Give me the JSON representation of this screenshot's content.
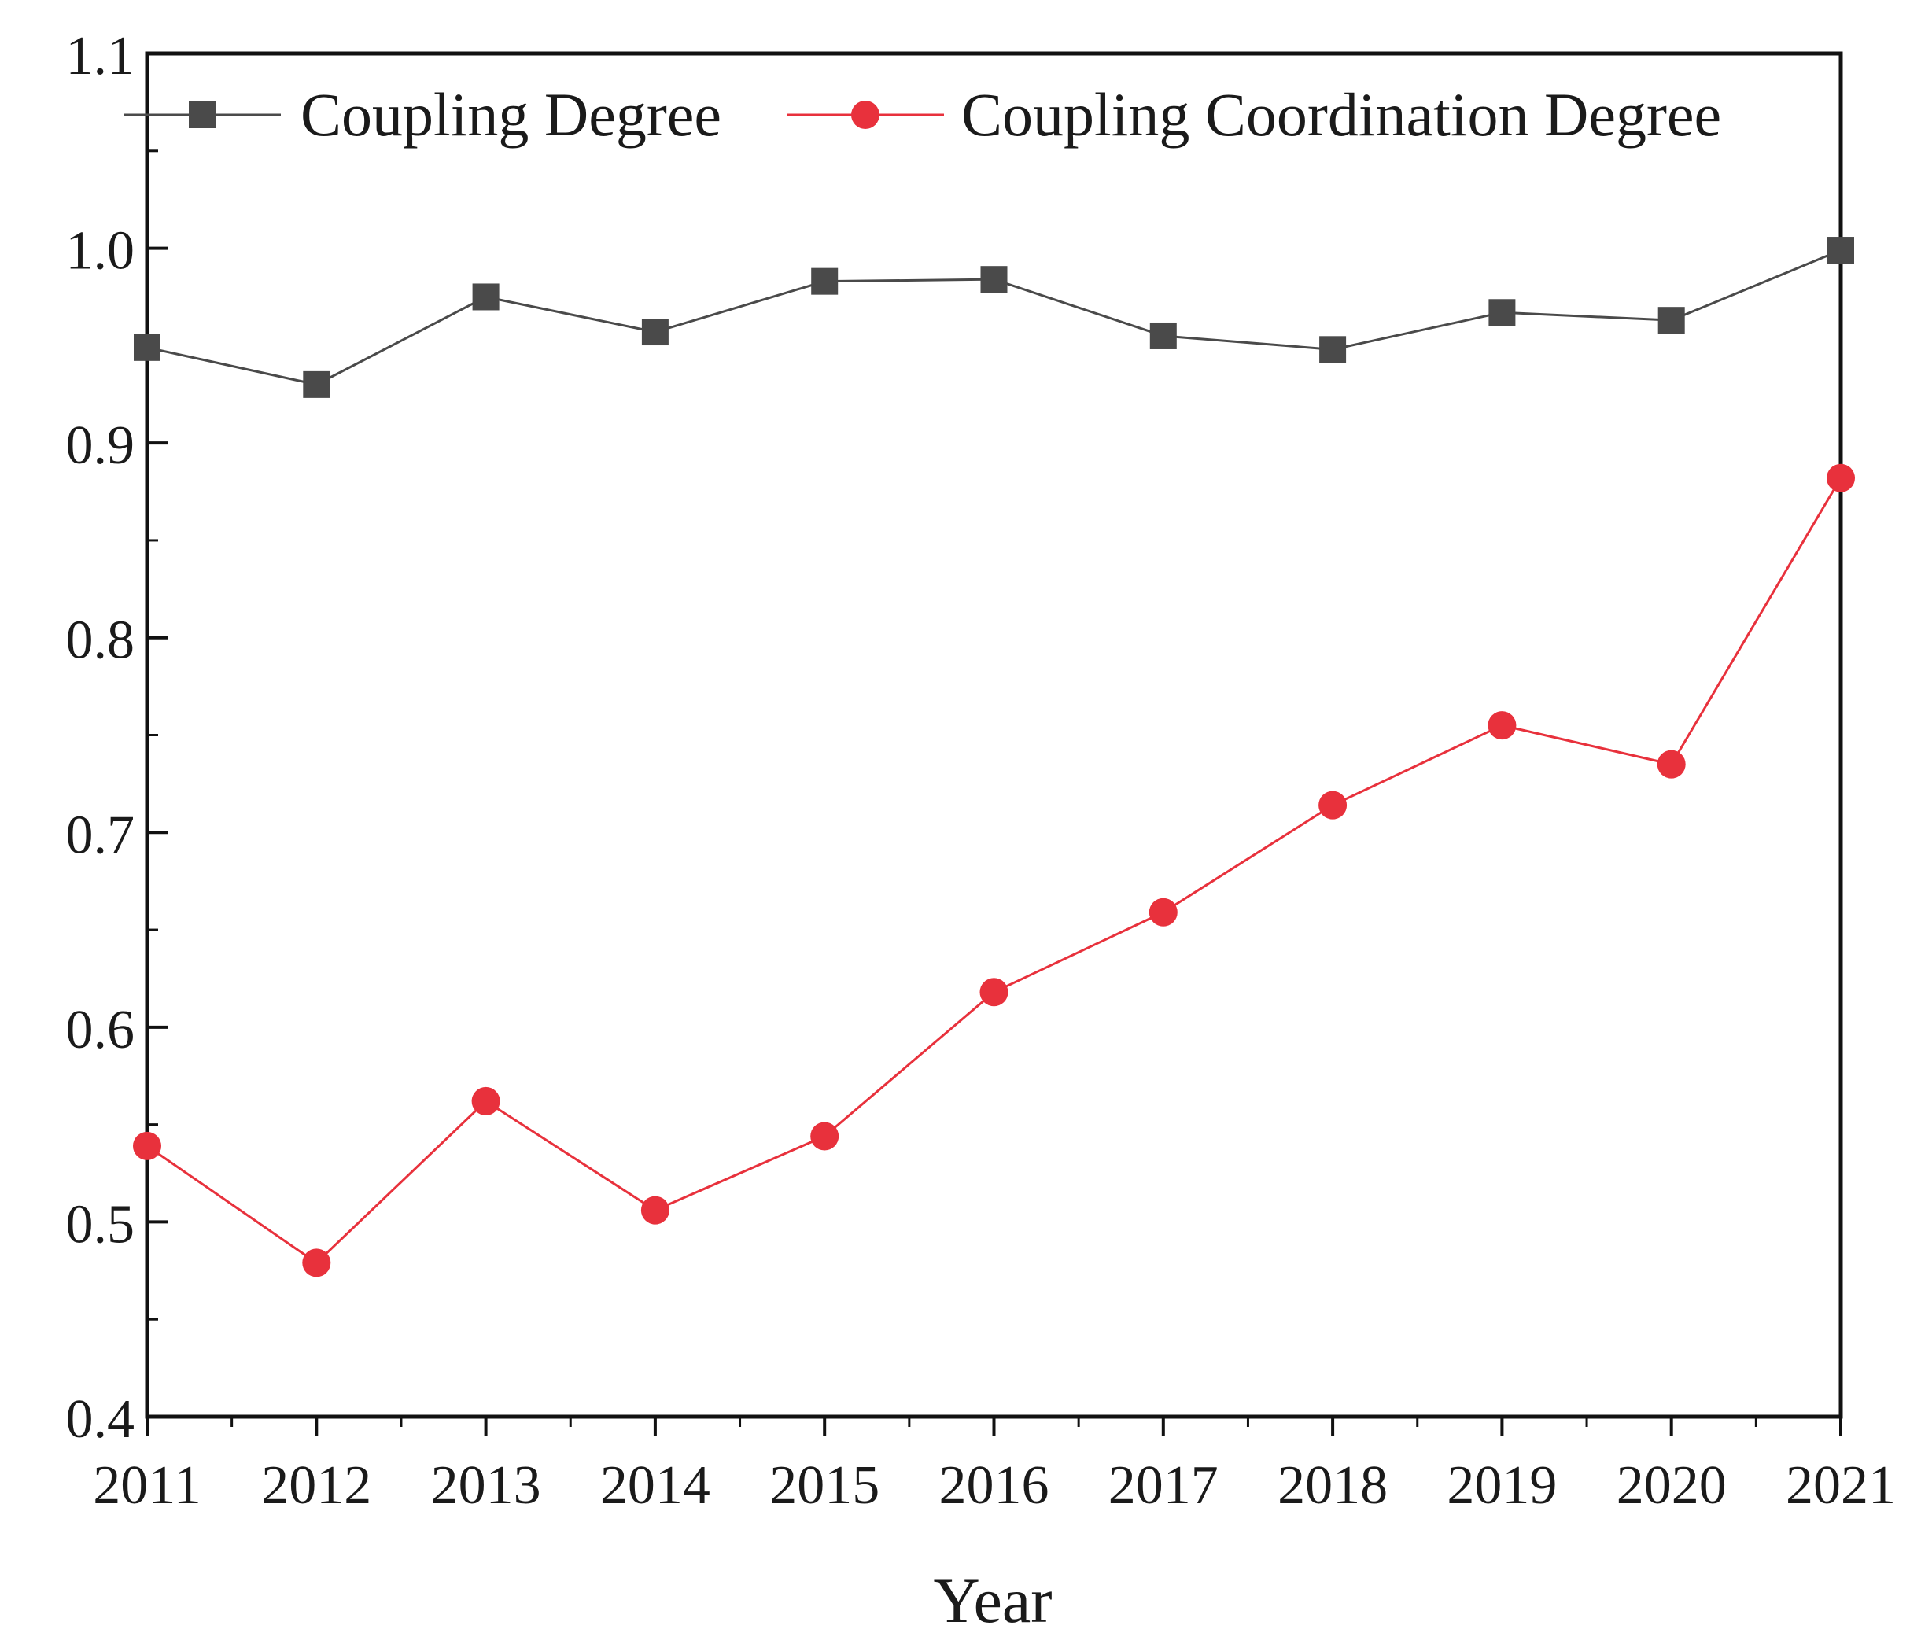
{
  "chart_data": {
    "type": "line",
    "title": "",
    "xlabel": "Year",
    "ylabel": "",
    "categories": [
      "2011",
      "2012",
      "2013",
      "2014",
      "2015",
      "2016",
      "2017",
      "2018",
      "2019",
      "2020",
      "2021"
    ],
    "ylim": [
      0.4,
      1.1
    ],
    "yticks": [
      "0.4",
      "0.5",
      "0.6",
      "0.7",
      "0.8",
      "0.9",
      "1.0",
      "1.1"
    ],
    "grid": false,
    "legend_position": "top",
    "series": [
      {
        "name": "Coupling Degree",
        "color": "#4a4a4a",
        "marker": "square",
        "values": [
          0.949,
          0.93,
          0.975,
          0.957,
          0.983,
          0.984,
          0.955,
          0.948,
          0.967,
          0.963,
          0.999
        ]
      },
      {
        "name": "Coupling Coordination Degree",
        "color": "#e8313c",
        "marker": "circle",
        "values": [
          0.539,
          0.479,
          0.562,
          0.506,
          0.544,
          0.618,
          0.659,
          0.714,
          0.755,
          0.735,
          0.882
        ]
      }
    ]
  }
}
